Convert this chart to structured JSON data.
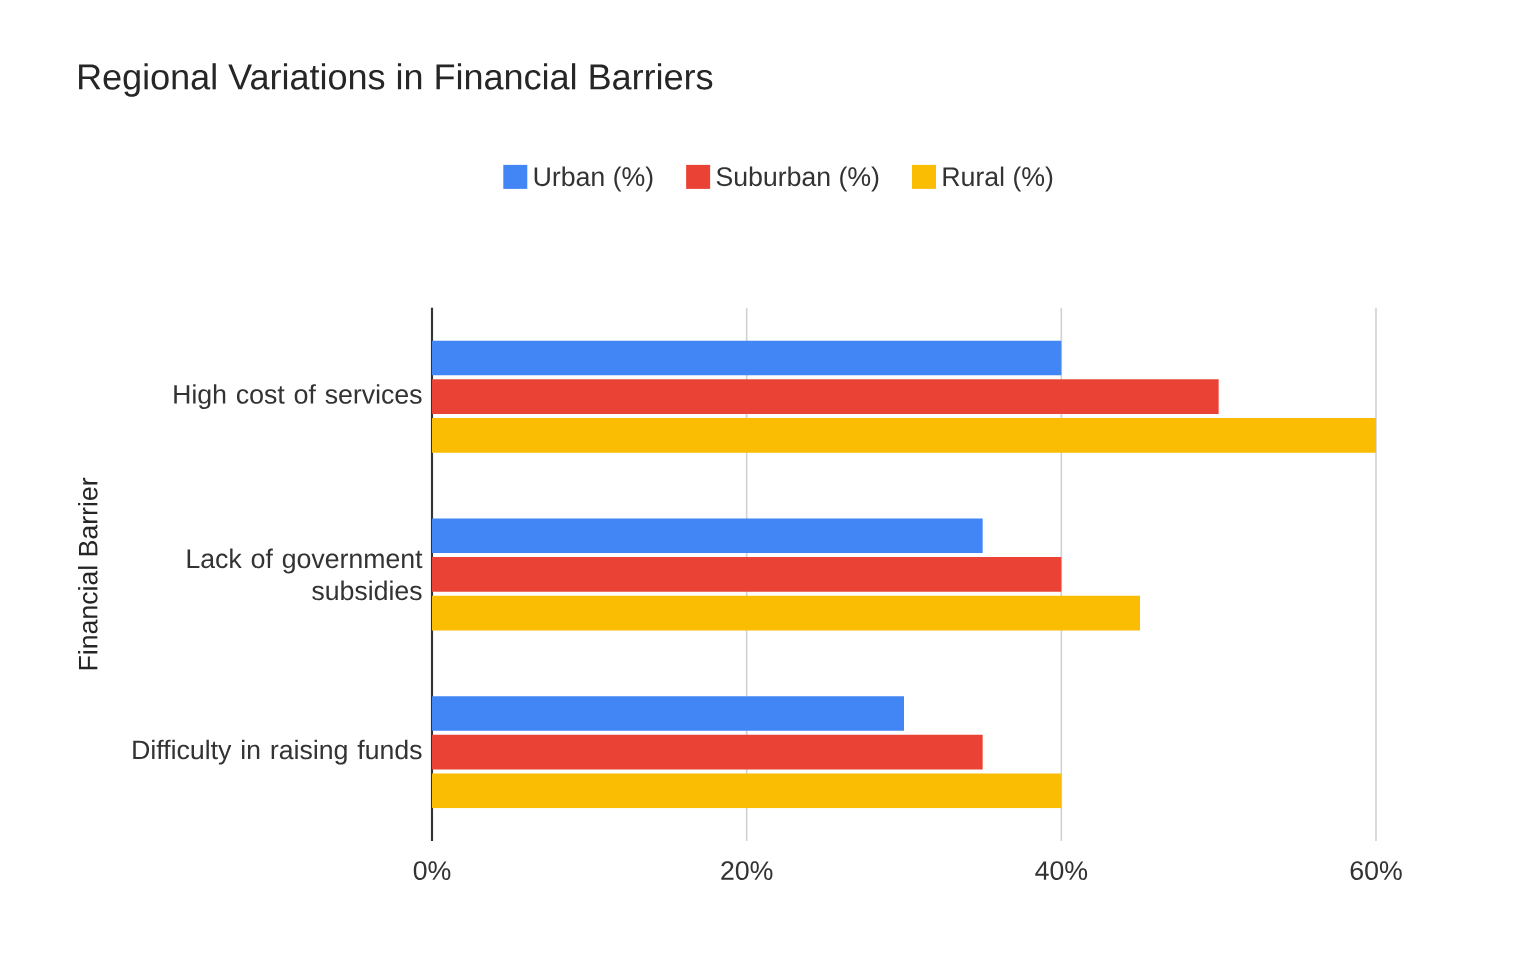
{
  "chart_data": {
    "type": "bar",
    "orientation": "horizontal",
    "title": "Regional Variations in Financial Barriers",
    "ylabel": "Financial Barrier",
    "categories": [
      "High cost of services",
      "Lack of government subsidies",
      "Difficulty in raising funds"
    ],
    "series": [
      {
        "name": "Urban (%)",
        "color": "#4285f4",
        "values": [
          40,
          35,
          30
        ]
      },
      {
        "name": "Suburban (%)",
        "color": "#ea4335",
        "values": [
          50,
          40,
          35
        ]
      },
      {
        "name": "Rural (%)",
        "color": "#fbbc04",
        "values": [
          60,
          45,
          40
        ]
      }
    ],
    "xlim": [
      0,
      60
    ],
    "xticks": [
      {
        "value": 0,
        "label": "0%"
      },
      {
        "value": 20,
        "label": "20%"
      },
      {
        "value": 40,
        "label": "40%"
      },
      {
        "value": 60,
        "label": "60%"
      }
    ],
    "grid": "x",
    "legend": "top"
  }
}
